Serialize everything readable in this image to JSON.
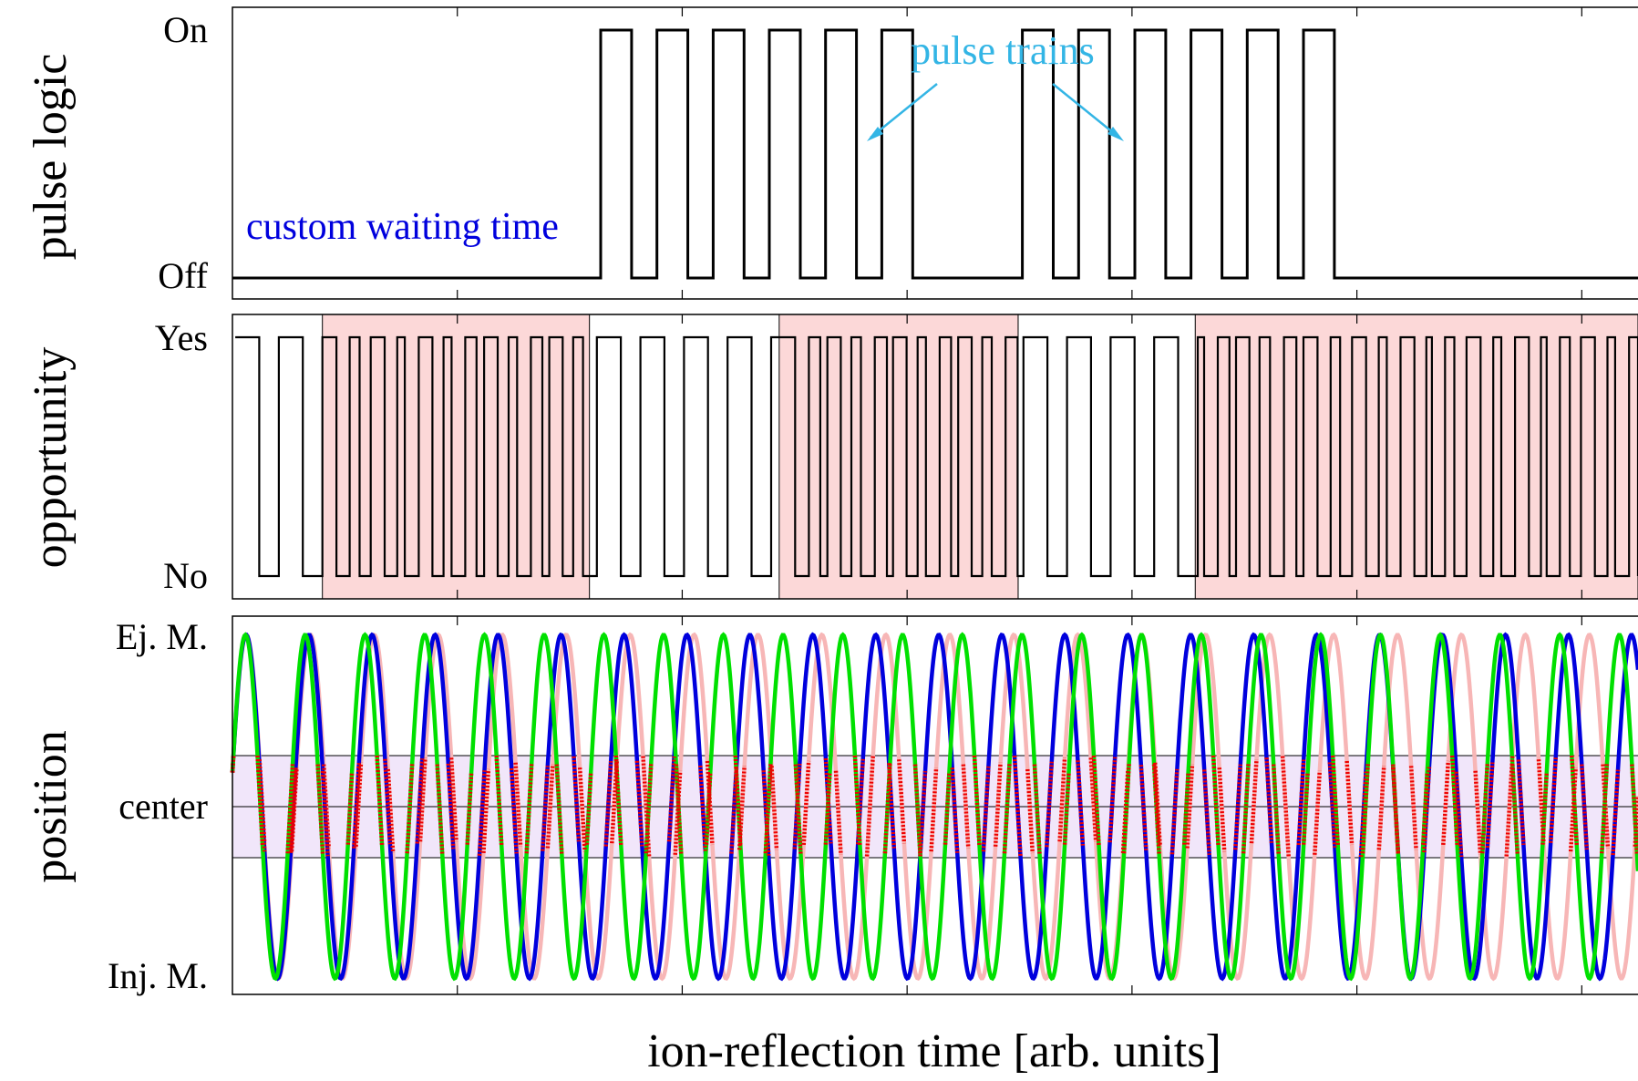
{
  "figure": {
    "xlabel": "ion-reflection time [arb. units]",
    "panels": [
      {
        "id": "pulse",
        "ylabel": "pulse logic",
        "ticks": [
          "On",
          "Off"
        ]
      },
      {
        "id": "opportunity",
        "ylabel": "opportunity",
        "ticks": [
          "Yes",
          "No"
        ]
      },
      {
        "id": "position",
        "ylabel": "position",
        "ticks": [
          "Ej. M.",
          "center",
          "Inj. M."
        ]
      }
    ],
    "annotations": {
      "waiting": "custom waiting time",
      "trains": "pulse trains"
    },
    "colors": {
      "trace": "#000000",
      "waiting_text": "#0000dd",
      "trains_text": "#33b5e5",
      "shade_windows": "#fcd8d8",
      "shade_center": "#f1e6fa",
      "ion_pink": "#f7b6b6",
      "ion_blue": "#0000dd",
      "ion_green": "#00e000",
      "ion_red": "#ee0000"
    }
  },
  "chart_data": [
    {
      "type": "line",
      "panel": "pulse logic",
      "x_range": [
        0,
        100
      ],
      "y_levels": [
        "Off",
        "On"
      ],
      "pulse_trains": [
        {
          "start": 26.2,
          "period": 4.0,
          "high_width": 2.2,
          "count": 6
        },
        {
          "start": 56.2,
          "period": 4.0,
          "high_width": 2.2,
          "count": 6
        }
      ],
      "waiting_interval": [
        0,
        26.2
      ]
    },
    {
      "type": "line",
      "panel": "opportunity",
      "x_range": [
        0,
        100
      ],
      "y_levels": [
        "No",
        "Yes"
      ],
      "base_period": 3.1,
      "highlight_windows": [
        [
          6.4,
          25.4
        ],
        [
          38.9,
          55.9
        ],
        [
          68.5,
          100
        ]
      ],
      "dense_period": 1.0
    },
    {
      "type": "line",
      "panel": "position",
      "x_range": [
        0,
        100
      ],
      "y_levels": [
        "Inj. M.",
        "center",
        "Ej. M."
      ],
      "center_band": [
        -0.3,
        0.3
      ],
      "series": [
        {
          "color": "pink",
          "period": 4.55,
          "phase": 0.0
        },
        {
          "color": "blue",
          "period": 4.48,
          "phase": 0.0
        },
        {
          "color": "green",
          "period": 4.25,
          "phase": 0.0
        }
      ]
    }
  ]
}
